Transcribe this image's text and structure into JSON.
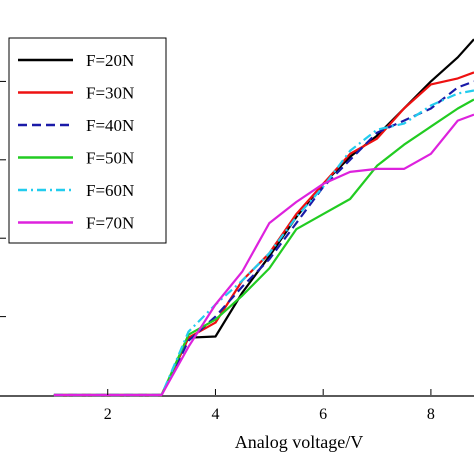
{
  "chart_data": {
    "type": "line",
    "title": "",
    "xlabel": "Analog voltage/V",
    "ylabel": "",
    "xlim": [
      0,
      8.8
    ],
    "ylim": [
      0,
      6.55
    ],
    "xticks": [
      2,
      4,
      6,
      8
    ],
    "grid": false,
    "legend_position": "top-left",
    "series": [
      {
        "name": "F=20N",
        "color": "#000000",
        "dash": "solid",
        "x": [
          1,
          2,
          3,
          3.5,
          4,
          4.5,
          5,
          5.5,
          6,
          6.5,
          7,
          7.5,
          8,
          8.5,
          8.8
        ],
        "y": [
          0,
          0,
          0,
          0.95,
          0.97,
          1.7,
          2.3,
          2.95,
          3.5,
          3.95,
          4.3,
          4.75,
          5.2,
          5.6,
          5.9
        ]
      },
      {
        "name": "F=30N",
        "color": "#ee1111",
        "dash": "solid",
        "x": [
          1,
          2,
          3,
          3.5,
          4,
          4.5,
          5,
          5.5,
          6,
          6.5,
          7,
          7.5,
          8,
          8.5,
          8.8
        ],
        "y": [
          0,
          0,
          0,
          0.95,
          1.2,
          1.9,
          2.35,
          3.0,
          3.5,
          4.0,
          4.25,
          4.75,
          5.15,
          5.25,
          5.35
        ]
      },
      {
        "name": "F=40N",
        "color": "#1a1aa8",
        "dash": "dashed",
        "x": [
          1,
          2,
          3,
          3.5,
          4,
          4.5,
          5,
          5.5,
          6,
          6.5,
          7,
          7.5,
          8,
          8.5,
          8.8
        ],
        "y": [
          0,
          0,
          0,
          0.9,
          1.3,
          1.8,
          2.25,
          2.85,
          3.45,
          3.9,
          4.35,
          4.55,
          4.75,
          5.1,
          5.2
        ]
      },
      {
        "name": "F=50N",
        "color": "#22cc22",
        "dash": "solid",
        "x": [
          1,
          2,
          3,
          3.5,
          4,
          4.5,
          5,
          5.5,
          6,
          6.5,
          7,
          7.5,
          8,
          8.5,
          8.8
        ],
        "y": [
          0,
          0,
          0,
          1.0,
          1.25,
          1.65,
          2.1,
          2.75,
          3.0,
          3.25,
          3.8,
          4.15,
          4.45,
          4.75,
          4.9
        ]
      },
      {
        "name": "F=60N",
        "color": "#22ccee",
        "dash": "dashdot",
        "x": [
          1,
          2,
          3,
          3.5,
          4,
          4.5,
          5,
          5.5,
          6,
          6.5,
          7,
          7.5,
          8,
          8.5,
          8.8
        ],
        "y": [
          0,
          0,
          0,
          1.05,
          1.5,
          1.9,
          2.35,
          2.95,
          3.45,
          4.05,
          4.4,
          4.5,
          4.8,
          5.0,
          5.05
        ]
      },
      {
        "name": "F=70N",
        "color": "#dd22dd",
        "dash": "solid",
        "x": [
          1,
          2,
          3,
          3.5,
          4,
          4.5,
          5,
          5.5,
          6,
          6.5,
          7,
          7.5,
          8,
          8.5,
          8.8
        ],
        "y": [
          0,
          0,
          0,
          0.8,
          1.5,
          2.05,
          2.85,
          3.2,
          3.5,
          3.7,
          3.75,
          3.75,
          4.0,
          4.55,
          4.65
        ]
      }
    ]
  }
}
